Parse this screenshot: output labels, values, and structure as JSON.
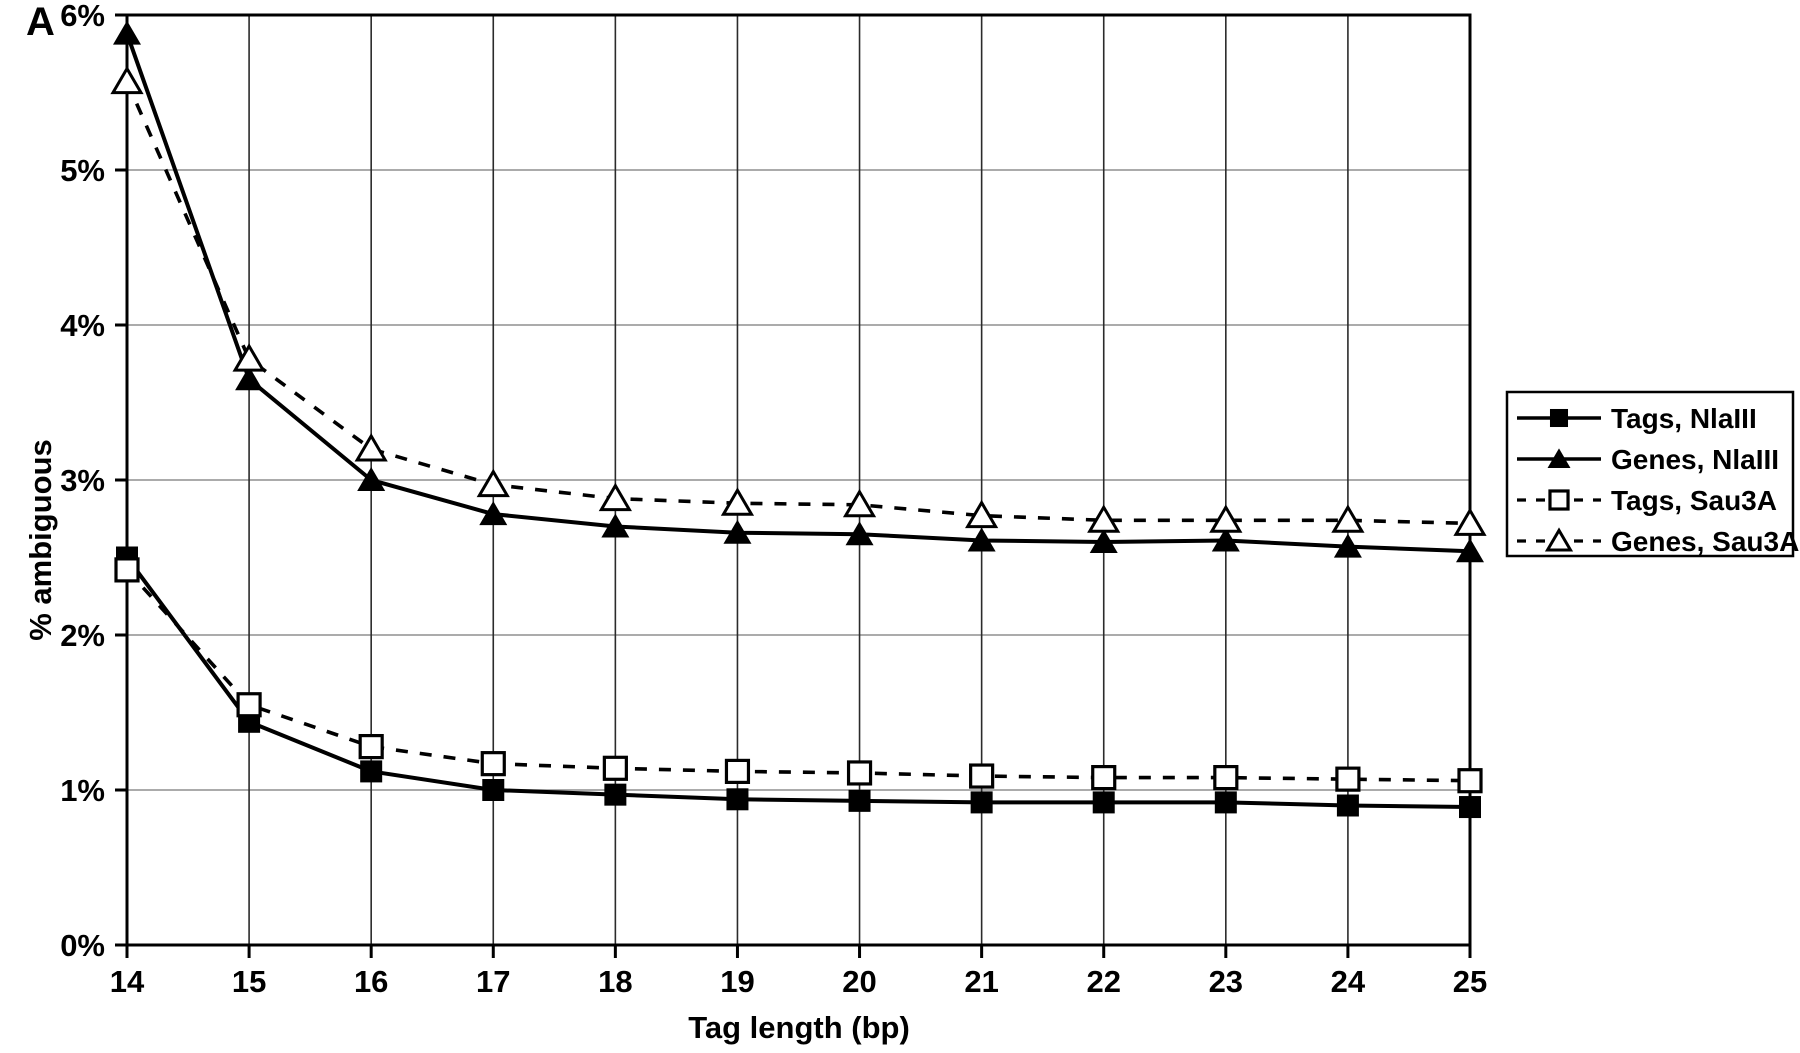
{
  "panel_label": "A",
  "chart_data": {
    "type": "line",
    "title": "",
    "xlabel": "Tag length (bp)",
    "ylabel": "% ambiguous",
    "x": [
      14,
      15,
      16,
      17,
      18,
      19,
      20,
      21,
      22,
      23,
      24,
      25
    ],
    "xlim": [
      14,
      25
    ],
    "ylim": [
      0,
      6
    ],
    "ytick_values": [
      0,
      1,
      2,
      3,
      4,
      5,
      6
    ],
    "ytick_labels": [
      "0%",
      "1%",
      "2%",
      "3%",
      "4%",
      "5%",
      "6%"
    ],
    "grid": true,
    "legend_position": "right-outside",
    "series": [
      {
        "name": "Tags, NlaIII",
        "line": "solid",
        "marker": "filled-square",
        "values": [
          2.5,
          1.44,
          1.12,
          1.0,
          0.97,
          0.94,
          0.93,
          0.92,
          0.92,
          0.92,
          0.9,
          0.89
        ]
      },
      {
        "name": "Genes, NlaIII",
        "line": "solid",
        "marker": "filled-triangle",
        "values": [
          5.88,
          3.65,
          3.0,
          2.78,
          2.7,
          2.66,
          2.65,
          2.61,
          2.6,
          2.61,
          2.57,
          2.54
        ]
      },
      {
        "name": "Tags, Sau3A",
        "line": "dashed",
        "marker": "open-square",
        "values": [
          2.42,
          1.55,
          1.28,
          1.17,
          1.14,
          1.12,
          1.11,
          1.09,
          1.08,
          1.08,
          1.07,
          1.06
        ]
      },
      {
        "name": "Genes, Sau3A",
        "line": "dashed",
        "marker": "open-triangle",
        "values": [
          5.57,
          3.78,
          3.2,
          2.97,
          2.88,
          2.85,
          2.84,
          2.77,
          2.74,
          2.74,
          2.74,
          2.72
        ]
      }
    ],
    "colors": {
      "line": "#000000",
      "background": "#ffffff",
      "grid_horizontal": "#8f8f8f",
      "grid_vertical": "#2b2b2b"
    }
  }
}
